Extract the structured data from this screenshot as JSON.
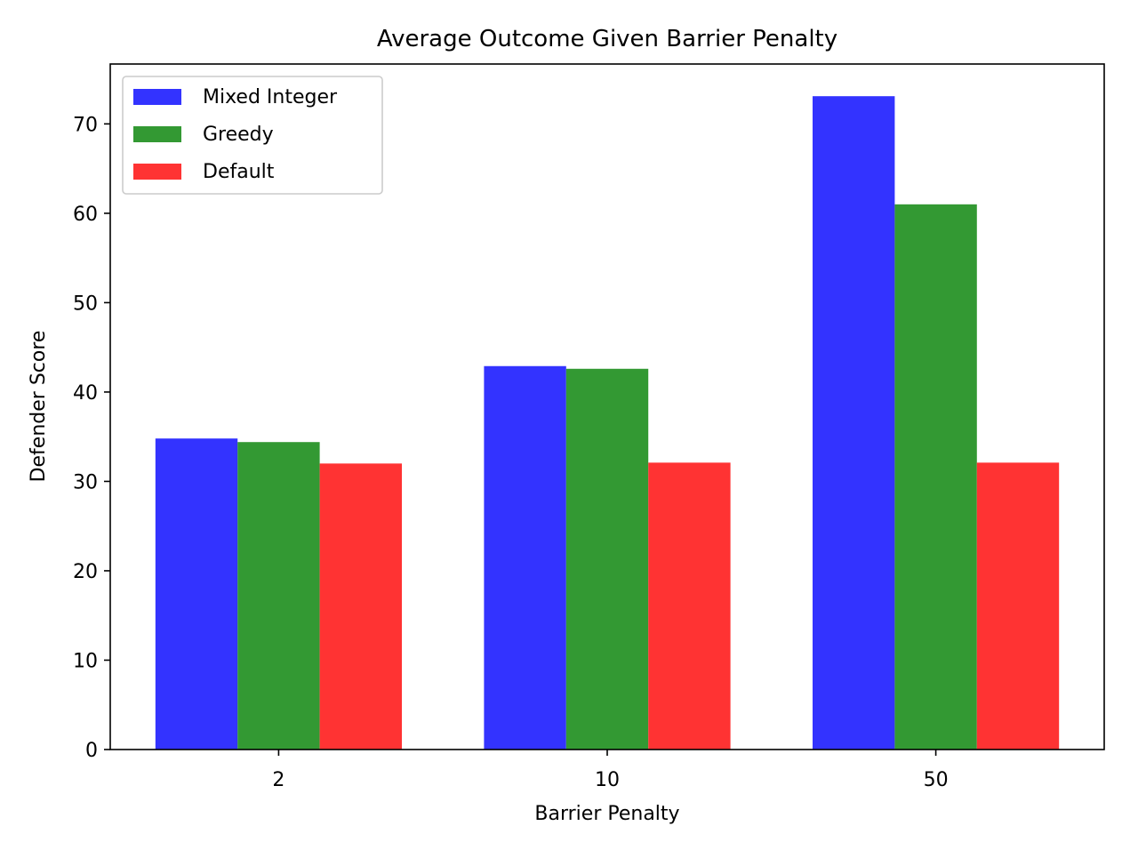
{
  "chart_data": {
    "type": "bar",
    "title": "Average Outcome Given Barrier Penalty",
    "xlabel": "Barrier Penalty",
    "ylabel": "Defender Score",
    "categories": [
      "2",
      "10",
      "50"
    ],
    "ylim": [
      0,
      76.7
    ],
    "yticks": [
      0,
      10,
      20,
      30,
      40,
      50,
      60,
      70
    ],
    "grid": false,
    "legend_position": "upper-left",
    "series": [
      {
        "name": "Mixed Integer",
        "color": "#3333ff",
        "values": [
          34.8,
          42.9,
          73.1
        ]
      },
      {
        "name": "Greedy",
        "color": "#339933",
        "values": [
          34.4,
          42.6,
          61.0
        ]
      },
      {
        "name": "Default",
        "color": "#ff3333",
        "values": [
          32.0,
          32.1,
          32.1
        ]
      }
    ]
  }
}
